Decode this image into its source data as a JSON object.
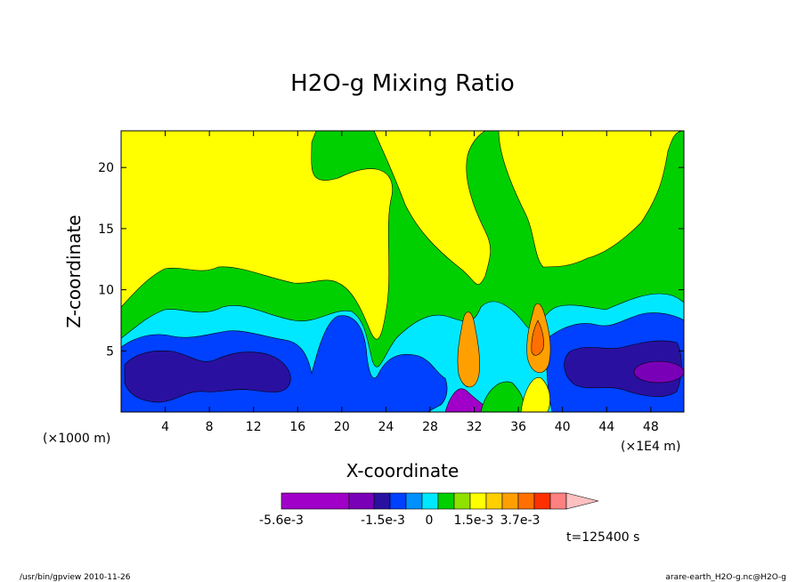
{
  "chart_data": {
    "type": "heatmap",
    "title": "H2O-g Mixing Ratio",
    "xlabel": "X-coordinate",
    "ylabel": "Z-coordinate",
    "x_unit": "(×1000 m)",
    "x_multiplier": "(×1E4 m)",
    "x_ticks": [
      "4",
      "8",
      "12",
      "16",
      "20",
      "24",
      "28",
      "32",
      "36",
      "40",
      "44",
      "48"
    ],
    "x_tick_values": [
      4,
      8,
      12,
      16,
      20,
      24,
      28,
      32,
      36,
      40,
      44,
      48
    ],
    "y_ticks": [
      "5",
      "10",
      "15",
      "20"
    ],
    "y_tick_values": [
      5,
      10,
      15,
      20
    ],
    "xlim": [
      0,
      51
    ],
    "ylim": [
      0,
      23
    ],
    "colorbar": {
      "colors": [
        "#a000c8",
        "#7a00b8",
        "#2a10a0",
        "#0040ff",
        "#0090ff",
        "#00e8ff",
        "#00d000",
        "#90e000",
        "#ffff00",
        "#ffd000",
        "#ffa000",
        "#ff7000",
        "#ff3000",
        "#ff8080",
        "#ffc0c0"
      ],
      "labels": [
        "-5.6e-3",
        "-1.5e-3",
        "0",
        "1.5e-3",
        "3.7e-3"
      ]
    },
    "time_label": "t=125400 s"
  },
  "footer": {
    "left": "/usr/bin/gpview   2010-11-26",
    "right": "arare-earth_H2O-g.nc@H2O-g"
  }
}
